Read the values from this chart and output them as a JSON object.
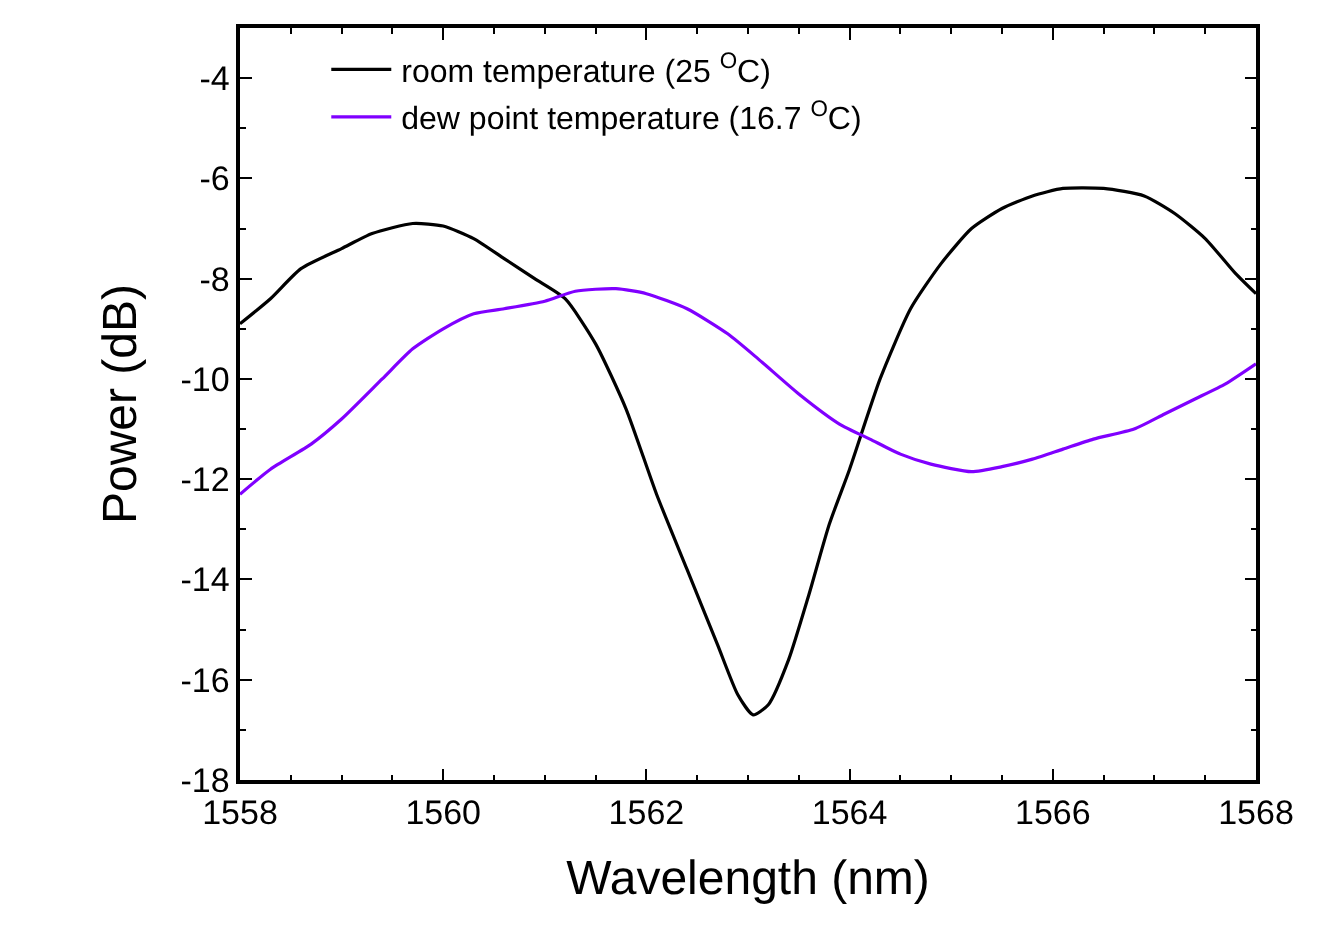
{
  "chart_data": {
    "type": "line",
    "xlabel": "Wavelength (nm)",
    "ylabel": "Power (dB)",
    "xlim": [
      1558,
      1568
    ],
    "xticks": [
      1558,
      1560,
      1562,
      1564,
      1566,
      1568
    ],
    "ylim": [
      -18,
      -3
    ],
    "yticks": [
      -18,
      -16,
      -14,
      -12,
      -10,
      -8,
      -6,
      -4
    ],
    "legend": "top left",
    "marker": "none",
    "line_style": "solid",
    "series": [
      {
        "name": "room temperature (25 $^{O}$C)",
        "color": "#000000",
        "x": [
          1558,
          1558.3,
          1558.6,
          1559,
          1559.3,
          1559.7,
          1560,
          1560.3,
          1560.6,
          1560.9,
          1561.2,
          1561.5,
          1561.8,
          1562.1,
          1562.4,
          1562.7,
          1562.9,
          1563.05,
          1563.2,
          1563.4,
          1563.6,
          1563.8,
          1564,
          1564.3,
          1564.6,
          1564.9,
          1565.2,
          1565.5,
          1565.8,
          1566.1,
          1566.5,
          1566.9,
          1567.2,
          1567.5,
          1567.8,
          1568
        ],
        "values": [
          -8.9,
          -8.4,
          -7.8,
          -7.4,
          -7.1,
          -6.9,
          -6.95,
          -7.2,
          -7.6,
          -8.0,
          -8.4,
          -9.3,
          -10.6,
          -12.3,
          -13.8,
          -15.3,
          -16.3,
          -16.7,
          -16.5,
          -15.6,
          -14.3,
          -12.9,
          -11.8,
          -10.0,
          -8.6,
          -7.7,
          -7.0,
          -6.6,
          -6.35,
          -6.2,
          -6.2,
          -6.35,
          -6.7,
          -7.2,
          -7.9,
          -8.3
        ]
      },
      {
        "name": "dew point temperature (16.7 $^{O}$C)",
        "color": "#8000ff",
        "x": [
          1558,
          1558.3,
          1558.7,
          1559,
          1559.4,
          1559.7,
          1560,
          1560.3,
          1560.6,
          1561,
          1561.3,
          1561.7,
          1562,
          1562.4,
          1562.8,
          1563.1,
          1563.5,
          1563.9,
          1564.2,
          1564.5,
          1564.8,
          1565.2,
          1565.5,
          1565.8,
          1566.1,
          1566.4,
          1566.8,
          1567.1,
          1567.4,
          1567.7,
          1568
        ],
        "values": [
          -12.3,
          -11.8,
          -11.3,
          -10.8,
          -10.0,
          -9.4,
          -9.0,
          -8.7,
          -8.6,
          -8.45,
          -8.25,
          -8.2,
          -8.3,
          -8.6,
          -9.1,
          -9.6,
          -10.3,
          -10.9,
          -11.2,
          -11.5,
          -11.7,
          -11.85,
          -11.75,
          -11.6,
          -11.4,
          -11.2,
          -11.0,
          -10.7,
          -10.4,
          -10.1,
          -9.7
        ]
      }
    ]
  }
}
